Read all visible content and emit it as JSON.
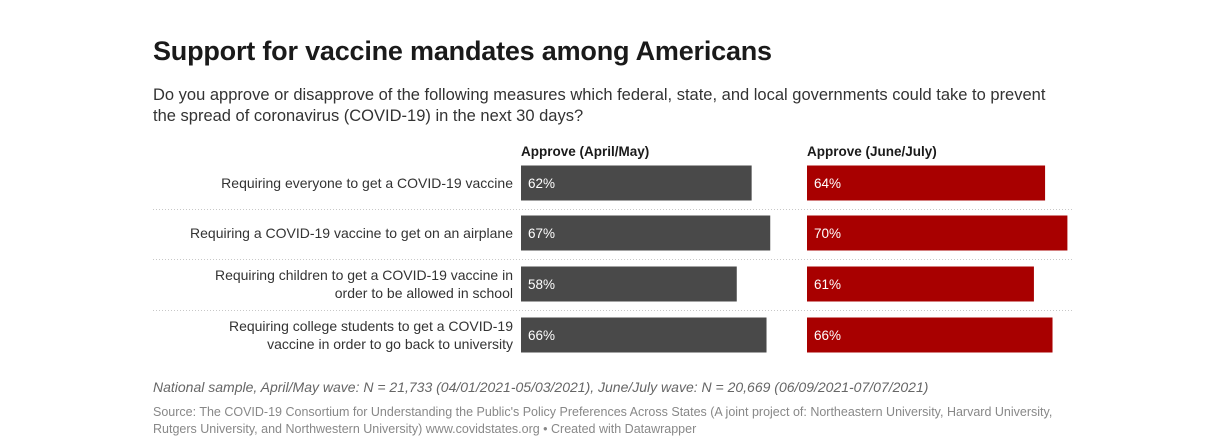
{
  "header": {
    "title": "Support for vaccine mandates among Americans",
    "subtitle": "Do you approve or disapprove of the following measures which federal, state, and local governments could take to prevent the spread of coronavirus (COVID-19) in the next 30 days?"
  },
  "chart_data": {
    "type": "bar",
    "orientation": "horizontal",
    "categories": [
      [
        "Requiring everyone to get a COVID-19 vaccine"
      ],
      [
        "Requiring a COVID-19 vaccine to get on an airplane"
      ],
      [
        "Requiring children to get a COVID-19 vaccine in",
        "order to be allowed in school"
      ],
      [
        "Requiring college students to get a COVID-19",
        "vaccine in order to go back to university"
      ]
    ],
    "series": [
      {
        "name": "Approve (April/May)",
        "color": "#494949",
        "values": [
          62,
          67,
          58,
          66
        ],
        "labels": [
          "62%",
          "67%",
          "58%",
          "66%"
        ]
      },
      {
        "name": "Approve (June/July)",
        "color": "#a80000",
        "values": [
          64,
          70,
          61,
          66
        ],
        "labels": [
          "64%",
          "70%",
          "61%",
          "66%"
        ]
      }
    ],
    "xlim": [
      0,
      100
    ],
    "grid": false,
    "legend": "column headers"
  },
  "footer": {
    "note": "National sample, April/May wave: N = 21,733 (04/01/2021-05/03/2021), June/July wave: N = 20,669 (06/09/2021-07/07/2021)",
    "source": "Source: The COVID-19 Consortium for Understanding the Public's Policy Preferences Across States (A joint project of: Northeastern University, Harvard University, Rutgers University, and Northwestern University) www.covidstates.org • Created with Datawrapper"
  }
}
